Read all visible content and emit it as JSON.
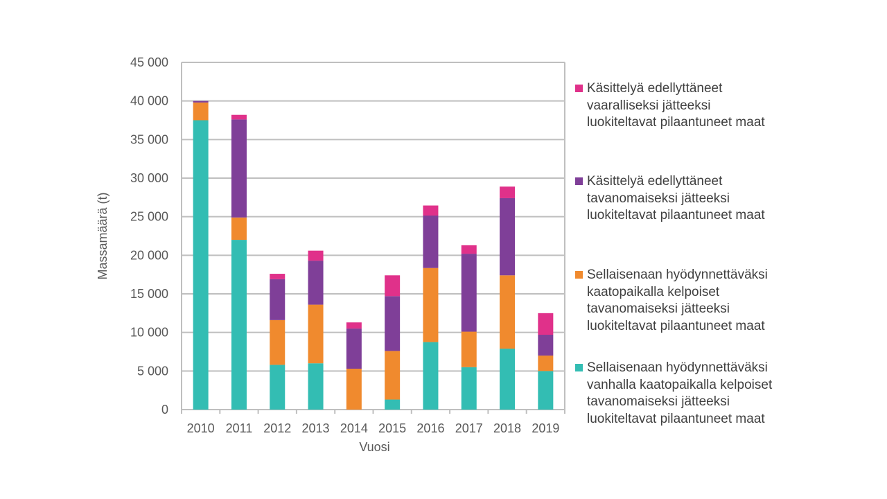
{
  "chart_data": {
    "type": "bar",
    "stacked": true,
    "categories": [
      "2010",
      "2011",
      "2012",
      "2013",
      "2014",
      "2015",
      "2016",
      "2017",
      "2018",
      "2019"
    ],
    "series": [
      {
        "name": "Sellaisenaan hyödynnettäväksi vanhalla kaatopaikalla kelpoiset tavanomaiseksi jätteeksi luokiteltavat pilaantuneet maat",
        "color": "#33bdb3",
        "values": [
          37500,
          22000,
          5800,
          6000,
          0,
          1300,
          8750,
          5500,
          7900,
          5000
        ]
      },
      {
        "name": "Sellaisenaan hyödynnettäväksi kaatopaikalla kelpoiset tavanomaiseksi jätteeksi luokiteltavat pilaantuneet maat",
        "color": "#f08a2e",
        "values": [
          2300,
          2900,
          5800,
          7600,
          5300,
          6300,
          9600,
          4600,
          9500,
          2000
        ]
      },
      {
        "name": "Käsittelyä edellyttäneet tavanomaiseksi jätteeksi luokiteltavat pilaantuneet maat",
        "color": "#7f3f98",
        "values": [
          200,
          12700,
          5300,
          5700,
          5200,
          7100,
          6800,
          10100,
          10000,
          2700
        ]
      },
      {
        "name": "Käsittelyä edellyttäneet vaaralliseksi jätteeksi luokiteltavat pilaantuneet maat",
        "color": "#e0318a",
        "values": [
          0,
          600,
          700,
          1300,
          800,
          2700,
          1300,
          1100,
          1500,
          2800
        ]
      }
    ],
    "xlabel": "Vuosi",
    "ylabel": "Massamäärä (t)",
    "ylim": [
      0,
      45000
    ],
    "yticks": [
      "0",
      "5 000",
      "10 000",
      "15 000",
      "20 000",
      "25 000",
      "30 000",
      "35 000",
      "40 000",
      "45 000"
    ],
    "grid": true,
    "legend_position": "right"
  },
  "legend": [
    {
      "text": "Käsittelyä edellyttäneet\nvaaralliseksi jätteeksi\nluokiteltavat pilaantuneet maat",
      "color": "#e0318a"
    },
    {
      "text": "Käsittelyä edellyttäneet\ntavanomaiseksi jätteeksi\nluokiteltavat pilaantuneet maat",
      "color": "#7f3f98"
    },
    {
      "text": "Sellaisenaan hyödynnettäväksi\nkaatopaikalla kelpoiset\ntavanomaiseksi jätteeksi\nluokiteltavat pilaantuneet maat",
      "color": "#f08a2e"
    },
    {
      "text": "Sellaisenaan hyödynnettäväksi\nvanhalla kaatopaikalla kelpoiset\ntavanomaiseksi jätteeksi\nluokiteltavat pilaantuneet maat",
      "color": "#33bdb3"
    }
  ]
}
